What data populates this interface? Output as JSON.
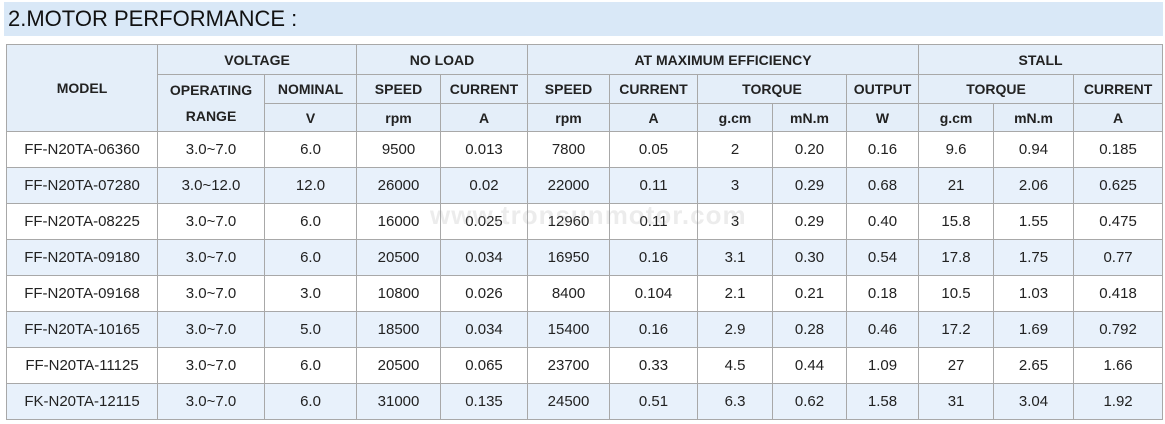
{
  "header": {
    "title": "2.MOTOR PERFORMANCE :"
  },
  "watermark": "www.tronsunmotor.com",
  "table": {
    "groups": [
      "MODEL",
      "VOLTAGE",
      "NO LOAD",
      "AT MAXIMUM EFFICIENCY",
      "STALL"
    ],
    "columns": [
      "OPERATING RANGE",
      "NOMINAL",
      "SPEED",
      "CURRENT",
      "SPEED",
      "CURRENT",
      "TORQUE",
      "OUTPUT",
      "TORQUE",
      "CURRENT"
    ],
    "units": [
      "V",
      "rpm",
      "A",
      "rpm",
      "A",
      "g.cm",
      "mN.m",
      "W",
      "g.cm",
      "mN.m",
      "A"
    ],
    "rows": [
      [
        "FF-N20TA-06360",
        "3.0~7.0",
        "6.0",
        "9500",
        "0.013",
        "7800",
        "0.05",
        "2",
        "0.20",
        "0.16",
        "9.6",
        "0.94",
        "0.185"
      ],
      [
        "FF-N20TA-07280",
        "3.0~12.0",
        "12.0",
        "26000",
        "0.02",
        "22000",
        "0.11",
        "3",
        "0.29",
        "0.68",
        "21",
        "2.06",
        "0.625"
      ],
      [
        "FF-N20TA-08225",
        "3.0~7.0",
        "6.0",
        "16000",
        "0.025",
        "12960",
        "0.11",
        "3",
        "0.29",
        "0.40",
        "15.8",
        "1.55",
        "0.475"
      ],
      [
        "FF-N20TA-09180",
        "3.0~7.0",
        "6.0",
        "20500",
        "0.034",
        "16950",
        "0.16",
        "3.1",
        "0.30",
        "0.54",
        "17.8",
        "1.75",
        "0.77"
      ],
      [
        "FF-N20TA-09168",
        "3.0~7.0",
        "3.0",
        "10800",
        "0.026",
        "8400",
        "0.104",
        "2.1",
        "0.21",
        "0.18",
        "10.5",
        "1.03",
        "0.418"
      ],
      [
        "FF-N20TA-10165",
        "3.0~7.0",
        "5.0",
        "18500",
        "0.034",
        "15400",
        "0.16",
        "2.9",
        "0.28",
        "0.46",
        "17.2",
        "1.69",
        "0.792"
      ],
      [
        "FF-N20TA-11125",
        "3.0~7.0",
        "6.0",
        "20500",
        "0.065",
        "23700",
        "0.33",
        "4.5",
        "0.44",
        "1.09",
        "27",
        "2.65",
        "1.66"
      ],
      [
        "FK-N20TA-12115",
        "3.0~7.0",
        "6.0",
        "31000",
        "0.135",
        "24500",
        "0.51",
        "6.3",
        "0.62",
        "1.58",
        "31",
        "3.04",
        "1.92"
      ]
    ]
  }
}
